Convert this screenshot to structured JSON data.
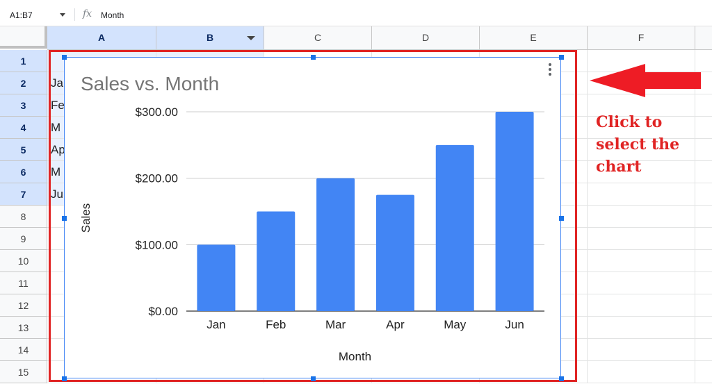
{
  "formula_bar": {
    "name_box": "A1:B7",
    "fx_label": "fx",
    "value": "Month"
  },
  "columns": [
    "A",
    "B",
    "C",
    "D",
    "E",
    "F"
  ],
  "rows": [
    "1",
    "2",
    "3",
    "4",
    "5",
    "6",
    "7",
    "8",
    "9",
    "10",
    "11",
    "12",
    "13",
    "14",
    "15"
  ],
  "cells_visible": [
    "Ja",
    "Fe",
    "M",
    "Ap",
    "M",
    "Ju"
  ],
  "annotation": {
    "text": "Click to select the chart",
    "color": "#e02424"
  },
  "colors": {
    "bar": "#4285f4",
    "selection": "#d3e3fd",
    "frame": "#e02424"
  },
  "chart_data": {
    "type": "bar",
    "title": "Sales vs. Month",
    "xlabel": "Month",
    "ylabel": "Sales",
    "categories": [
      "Jan",
      "Feb",
      "Mar",
      "Apr",
      "May",
      "Jun"
    ],
    "values": [
      100,
      150,
      200,
      175,
      250,
      300
    ],
    "ylim": [
      0,
      300
    ],
    "yticks": [
      0,
      100,
      200,
      300
    ],
    "ytick_labels": [
      "$0.00",
      "$100.00",
      "$200.00",
      "$300.00"
    ],
    "grid": true,
    "legend": "none"
  }
}
